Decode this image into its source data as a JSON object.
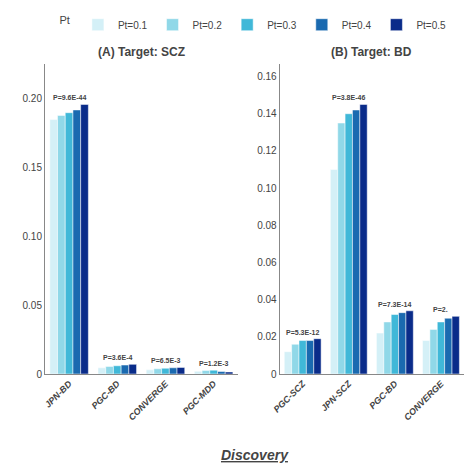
{
  "chart_data": [
    {
      "type": "bar",
      "title": "(A) Target: SCZ",
      "xlabel": "Discovery",
      "categories": [
        "JPN-BD",
        "PGC-BD",
        "CONVERGE",
        "PGC-MDD"
      ],
      "series": [
        {
          "name": "Pt=0.1",
          "color": "#d4f0f7",
          "values": [
            0.185,
            0.0045,
            0.003,
            0.002
          ]
        },
        {
          "name": "Pt=0.2",
          "color": "#90d8e8",
          "values": [
            0.188,
            0.0055,
            0.0038,
            0.0025
          ]
        },
        {
          "name": "Pt=0.3",
          "color": "#40b8d8",
          "values": [
            0.19,
            0.006,
            0.0042,
            0.0028
          ]
        },
        {
          "name": "Pt=0.4",
          "color": "#1a6ab0",
          "values": [
            0.192,
            0.0065,
            0.0045,
            0.0018
          ]
        },
        {
          "name": "Pt=0.5",
          "color": "#0a2c8a",
          "values": [
            0.196,
            0.007,
            0.0048,
            0.0015
          ]
        }
      ],
      "annotations": [
        {
          "x": "JPN-BD",
          "y": 0.196,
          "text": "P=9.6E-44"
        },
        {
          "x": "PGC-BD",
          "y": 0.007,
          "text": "P=3.6E-4"
        },
        {
          "x": "CONVERGE",
          "y": 0.0048,
          "text": "P=6.5E-3"
        },
        {
          "x": "PGC-MDD",
          "y": 0.0028,
          "text": "P=1.2E-3"
        }
      ],
      "ylim": [
        0,
        0.2254
      ],
      "yticks": [
        0,
        0.05,
        {
          "value": 0.1,
          "label": "0.10"
        },
        0.15,
        {
          "value": 0.2,
          "label": "0.20"
        }
      ],
      "grid": false,
      "legend": "top",
      "legend_title": "Pt"
    },
    {
      "type": "bar",
      "title": "(B) Target: BD",
      "categories": [
        "PGC-SCZ",
        "JPN-SCZ",
        "PGC-BD",
        "CONVERGE"
      ],
      "series": [
        {
          "name": "Pt=0.1",
          "color": "#d4f0f7",
          "values": [
            0.012,
            0.11,
            0.022,
            0.018
          ]
        },
        {
          "name": "Pt=0.2",
          "color": "#90d8e8",
          "values": [
            0.016,
            0.135,
            0.028,
            0.024
          ]
        },
        {
          "name": "Pt=0.3",
          "color": "#40b8d8",
          "values": [
            0.018,
            0.14,
            0.032,
            0.028
          ]
        },
        {
          "name": "Pt=0.4",
          "color": "#1a6ab0",
          "values": [
            0.018,
            0.142,
            0.033,
            0.03
          ]
        },
        {
          "name": "Pt=0.5",
          "color": "#0a2c8a",
          "values": [
            0.019,
            0.145,
            0.034,
            0.031
          ]
        }
      ],
      "annotations": [
        {
          "x": "PGC-SCZ",
          "y": 0.019,
          "text": "P=5.3E-12"
        },
        {
          "x": "JPN-SCZ",
          "y": 0.145,
          "text": "P=3.8E-46"
        },
        {
          "x": "PGC-BD",
          "y": 0.034,
          "text": "P=7.3E-14"
        },
        {
          "x": "CONVERGE",
          "y": 0.031,
          "text": "P=2."
        }
      ],
      "ylim": [
        0,
        0.16675
      ],
      "yticks": [
        0,
        0.02,
        0.04,
        0.06,
        0.08,
        {
          "value": 0.1,
          "label": "0.10"
        },
        0.12,
        0.14,
        0.16
      ],
      "grid": false
    }
  ]
}
